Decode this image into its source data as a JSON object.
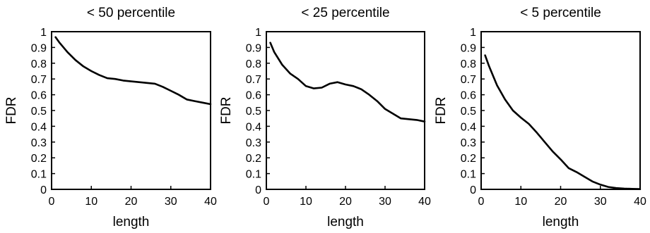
{
  "chart_data": [
    {
      "type": "line",
      "title": "< 50 percentile",
      "xlabel": "length",
      "ylabel": "FDR",
      "xlim": [
        0,
        40
      ],
      "ylim": [
        0,
        1
      ],
      "xticks": [
        0,
        10,
        20,
        30,
        40
      ],
      "yticks": [
        0,
        0.1,
        0.2,
        0.3,
        0.4,
        0.5,
        0.6,
        0.7,
        0.8,
        0.9,
        1
      ],
      "grid": false,
      "series": [
        {
          "x": [
            1,
            2,
            4,
            6,
            8,
            10,
            12,
            14,
            16,
            18,
            20,
            22,
            24,
            26,
            28,
            30,
            32,
            34,
            36,
            38,
            40
          ],
          "y": [
            0.965,
            0.93,
            0.87,
            0.82,
            0.78,
            0.75,
            0.725,
            0.705,
            0.7,
            0.69,
            0.685,
            0.68,
            0.675,
            0.67,
            0.65,
            0.625,
            0.6,
            0.57,
            0.56,
            0.55,
            0.54
          ]
        }
      ]
    },
    {
      "type": "line",
      "title": "< 25 percentile",
      "xlabel": "length",
      "ylabel": "FDR",
      "xlim": [
        0,
        40
      ],
      "ylim": [
        0,
        1
      ],
      "xticks": [
        0,
        10,
        20,
        30,
        40
      ],
      "yticks": [
        0,
        0.1,
        0.2,
        0.3,
        0.4,
        0.5,
        0.6,
        0.7,
        0.8,
        0.9,
        1
      ],
      "grid": false,
      "series": [
        {
          "x": [
            1,
            2,
            4,
            6,
            8,
            10,
            12,
            14,
            16,
            18,
            20,
            22,
            24,
            26,
            28,
            30,
            32,
            34,
            36,
            38,
            40
          ],
          "y": [
            0.93,
            0.87,
            0.79,
            0.735,
            0.7,
            0.655,
            0.64,
            0.645,
            0.67,
            0.68,
            0.665,
            0.655,
            0.635,
            0.6,
            0.56,
            0.51,
            0.48,
            0.45,
            0.445,
            0.44,
            0.43
          ]
        }
      ]
    },
    {
      "type": "line",
      "title": "< 5 percentile",
      "xlabel": "length",
      "ylabel": "FDR",
      "xlim": [
        0,
        40
      ],
      "ylim": [
        0,
        1
      ],
      "xticks": [
        0,
        10,
        20,
        30,
        40
      ],
      "yticks": [
        0,
        0.1,
        0.2,
        0.3,
        0.4,
        0.5,
        0.6,
        0.7,
        0.8,
        0.9,
        1
      ],
      "grid": false,
      "series": [
        {
          "x": [
            1,
            2,
            4,
            6,
            8,
            10,
            12,
            14,
            16,
            18,
            20,
            22,
            24,
            26,
            28,
            30,
            32,
            34,
            36,
            38,
            40
          ],
          "y": [
            0.85,
            0.78,
            0.66,
            0.57,
            0.5,
            0.455,
            0.415,
            0.36,
            0.3,
            0.24,
            0.19,
            0.135,
            0.11,
            0.08,
            0.05,
            0.03,
            0.015,
            0.008,
            0.005,
            0.003,
            0.002
          ]
        }
      ]
    }
  ]
}
